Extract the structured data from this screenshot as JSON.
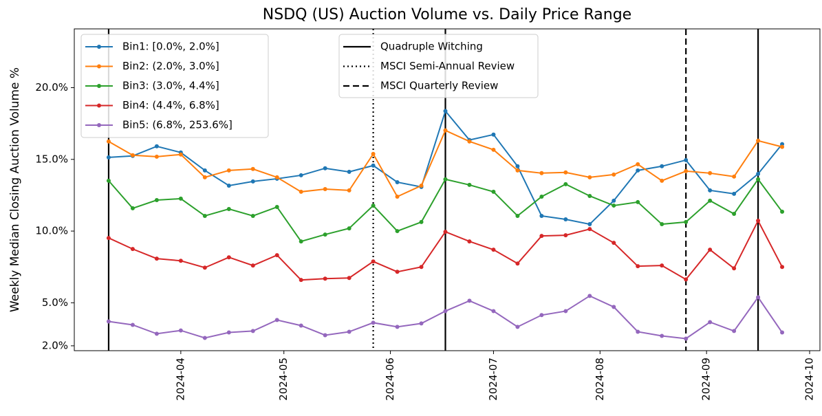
{
  "chart_data": {
    "type": "line",
    "title": "NSDQ (US) Auction Volume vs. Daily Price Range",
    "y_label": "Weekly Median Closing Auction Volume %",
    "x": [
      "2024-03-11",
      "2024-03-18",
      "2024-03-25",
      "2024-04-01",
      "2024-04-08",
      "2024-04-15",
      "2024-04-22",
      "2024-04-29",
      "2024-05-06",
      "2024-05-13",
      "2024-05-20",
      "2024-05-27",
      "2024-06-03",
      "2024-06-10",
      "2024-06-17",
      "2024-06-24",
      "2024-07-01",
      "2024-07-08",
      "2024-07-15",
      "2024-07-22",
      "2024-07-29",
      "2024-08-05",
      "2024-08-12",
      "2024-08-19",
      "2024-08-26",
      "2024-09-02",
      "2024-09-09",
      "2024-09-16",
      "2024-09-23"
    ],
    "series": [
      {
        "name": "Bin1: [0.0%, 2.0%]",
        "color": "#1f77b4",
        "values": [
          15.14,
          15.24,
          15.91,
          15.48,
          14.23,
          13.17,
          13.46,
          13.65,
          13.89,
          14.38,
          14.13,
          14.57,
          13.41,
          13.08,
          18.37,
          16.35,
          16.73,
          14.52,
          11.06,
          10.82,
          10.48,
          12.12,
          14.23,
          14.52,
          14.95,
          12.84,
          12.6,
          13.99,
          16.06
        ]
      },
      {
        "name": "Bin2: (2.0%, 3.0%]",
        "color": "#ff7f0e",
        "values": [
          16.25,
          15.29,
          15.19,
          15.34,
          13.75,
          14.23,
          14.33,
          13.75,
          12.74,
          12.93,
          12.84,
          15.38,
          12.4,
          13.17,
          17.02,
          16.25,
          15.67,
          14.23,
          14.04,
          14.09,
          13.75,
          13.94,
          14.66,
          13.51,
          14.18,
          14.04,
          13.8,
          16.3,
          15.87
        ]
      },
      {
        "name": "Bin3: (3.0%, 4.4%]",
        "color": "#2ca02c",
        "values": [
          13.51,
          11.59,
          12.16,
          12.26,
          11.06,
          11.54,
          11.06,
          11.68,
          9.28,
          9.76,
          10.19,
          11.78,
          10.0,
          10.63,
          13.61,
          13.22,
          12.74,
          11.06,
          12.4,
          13.27,
          12.45,
          11.78,
          12.02,
          10.48,
          10.63,
          12.12,
          11.2,
          13.61,
          11.35
        ]
      },
      {
        "name": "Bin4: (4.4%, 6.8%]",
        "color": "#d62728",
        "values": [
          9.52,
          8.75,
          8.08,
          7.93,
          7.45,
          8.17,
          7.6,
          8.32,
          6.59,
          6.68,
          6.73,
          7.88,
          7.16,
          7.5,
          9.95,
          9.28,
          8.7,
          7.74,
          9.66,
          9.71,
          10.14,
          9.18,
          7.55,
          7.6,
          6.63,
          8.7,
          7.4,
          10.72,
          7.5
        ]
      },
      {
        "name": "Bin5: (6.8%, 253.6%]",
        "color": "#9467bd",
        "values": [
          3.7,
          3.46,
          2.84,
          3.07,
          2.55,
          2.93,
          3.03,
          3.8,
          3.41,
          2.74,
          2.98,
          3.61,
          3.32,
          3.56,
          4.42,
          5.14,
          4.42,
          3.32,
          4.14,
          4.42,
          5.48,
          4.71,
          2.98,
          2.69,
          2.5,
          3.65,
          3.03,
          5.38,
          2.93
        ]
      }
    ],
    "events": [
      {
        "name": "Quadruple Witching",
        "style": "solid",
        "color": "#000000",
        "x": [
          "2024-03-11",
          "2024-06-17",
          "2024-09-16"
        ]
      },
      {
        "name": "MSCI Semi-Annual Review",
        "style": "dotted",
        "color": "#000000",
        "x": [
          "2024-05-27"
        ]
      },
      {
        "name": "MSCI Quarterly Review",
        "style": "dashed",
        "color": "#000000",
        "x": [
          "2024-08-26"
        ]
      }
    ],
    "xlim": [
      "2024-03-01",
      "2024-10-04"
    ],
    "xticks": [
      {
        "value": "2024-04-01",
        "label": "2024-04"
      },
      {
        "value": "2024-05-01",
        "label": "2024-05"
      },
      {
        "value": "2024-06-01",
        "label": "2024-06"
      },
      {
        "value": "2024-07-01",
        "label": "2024-07"
      },
      {
        "value": "2024-08-01",
        "label": "2024-08"
      },
      {
        "value": "2024-09-01",
        "label": "2024-09"
      },
      {
        "value": "2024-10-01",
        "label": "2024-10"
      }
    ],
    "ylim": [
      1.66,
      24.1
    ],
    "yticks": [
      {
        "value": 2,
        "label": "2.0%"
      },
      {
        "value": 5,
        "label": "5.0%"
      },
      {
        "value": 10,
        "label": "10.0%"
      },
      {
        "value": 15,
        "label": "15.0%"
      },
      {
        "value": 20,
        "label": "20.0%"
      }
    ],
    "legend": "upper left",
    "events_legend": "upper center",
    "grid": false
  }
}
